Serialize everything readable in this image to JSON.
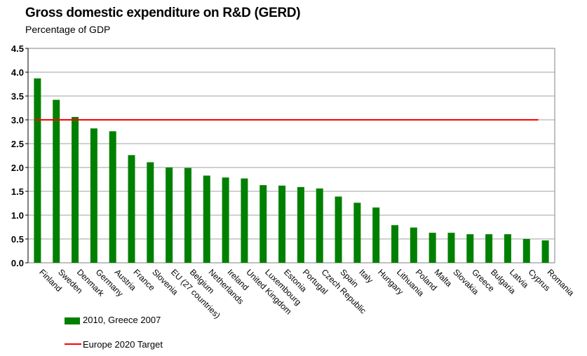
{
  "chart_data": {
    "type": "bar",
    "title": "Gross domestic expenditure on R&D (GERD)",
    "subtitle": "Percentage of GDP",
    "categories": [
      "Finland",
      "Sweden",
      "Denmark",
      "Germany",
      "Austria",
      "France",
      "Slovenia",
      "EU (27 countries)",
      "Belgium",
      "Netherlands",
      "Ireland",
      "United Kingdom",
      "Luxembourg",
      "Estonia",
      "Portugal",
      "Czech Republic",
      "Spain",
      "Italy",
      "Hungary",
      "Lithuania",
      "Poland",
      "Malta",
      "Slovakia",
      "Greece",
      "Bulgaria",
      "Latvia",
      "Cyprus",
      "Romania"
    ],
    "series": [
      {
        "name": "2010, Greece 2007",
        "color": "#008000",
        "values": [
          3.87,
          3.42,
          3.06,
          2.82,
          2.76,
          2.26,
          2.11,
          2.0,
          1.99,
          1.83,
          1.79,
          1.77,
          1.63,
          1.62,
          1.59,
          1.56,
          1.39,
          1.26,
          1.16,
          0.79,
          0.74,
          0.63,
          0.63,
          0.6,
          0.6,
          0.6,
          0.5,
          0.47
        ]
      }
    ],
    "target": {
      "name": "Europe 2020 Target",
      "value": 3.0,
      "color": "#ff0000"
    },
    "ylim": [
      0,
      4.5
    ],
    "yticks": [
      "0.0",
      "0.5",
      "1.0",
      "1.5",
      "2.0",
      "2.5",
      "3.0",
      "3.5",
      "4.0",
      "4.5"
    ],
    "grid": true,
    "legend_position": "bottom-left"
  }
}
